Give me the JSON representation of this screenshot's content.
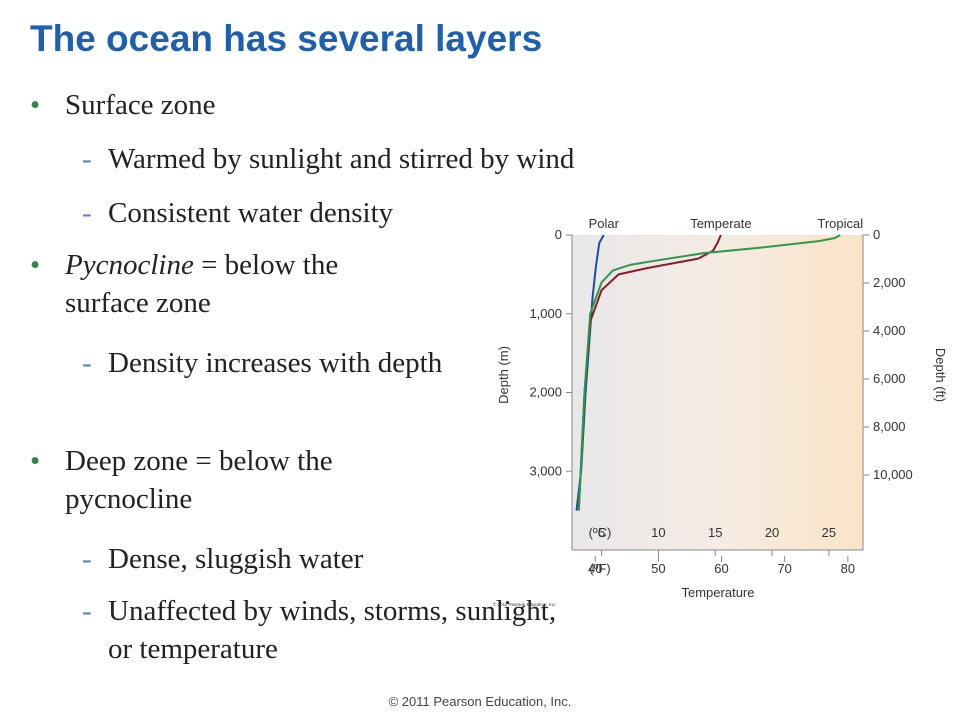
{
  "title": "The ocean has several layers",
  "bullets": [
    {
      "text": "Surface zone"
    },
    {
      "text": "Warmed by sunlight and stirred by wind"
    },
    {
      "text": "Consistent water density"
    },
    {
      "emph": "Pycnocline",
      "text": " = below the surface zone"
    },
    {
      "text": "Density increases with depth"
    },
    {
      "text": "Deep zone = below the pycnocline"
    },
    {
      "text": "Dense, sluggish water"
    },
    {
      "text": "Unaffected by winds, storms, sunlight, or temperature"
    }
  ],
  "chart_data": {
    "type": "line",
    "xlabel": "Temperature",
    "ylabel": "Depth (m)",
    "ylabel_right": "Depth (ft)",
    "x_unit_c": "(ºC)",
    "x_unit_f": "(ºF)",
    "x_ticks_c": [
      "5",
      "10",
      "15",
      "20",
      "25"
    ],
    "x_ticks_f": [
      "40",
      "50",
      "60",
      "70",
      "80"
    ],
    "y_ticks_m": [
      "0",
      "1,000",
      "2,000",
      "3,000"
    ],
    "y_ticks_ft": [
      "0",
      "2,000",
      "4,000",
      "6,000",
      "8,000",
      "10,000"
    ],
    "xlim_c": [
      2.4,
      28.0
    ],
    "ylim_m": [
      0,
      4000
    ],
    "grid": false,
    "series": [
      {
        "name": "Polar",
        "color": "#1b4f9c",
        "x": [
          2.8,
          3.2,
          3.6,
          4.0,
          4.2,
          4.5,
          4.8,
          5.2
        ],
        "y": [
          3500,
          3000,
          2000,
          1200,
          800,
          400,
          100,
          0
        ]
      },
      {
        "name": "Temperate",
        "color": "#8b1a2b",
        "x": [
          3.0,
          3.5,
          4.0,
          4.5,
          5.0,
          6.5,
          9.0,
          13.5,
          14.8,
          15.2,
          15.5
        ],
        "y": [
          3500,
          2000,
          1100,
          900,
          700,
          500,
          420,
          300,
          200,
          100,
          0
        ]
      },
      {
        "name": "Tropical",
        "color": "#2a9a4a",
        "x": [
          3.0,
          3.5,
          4.0,
          4.5,
          5.0,
          6.0,
          7.5,
          10.0,
          14.0,
          19.0,
          24.0,
          25.5,
          26.0
        ],
        "y": [
          3500,
          2000,
          1000,
          800,
          600,
          450,
          380,
          320,
          230,
          160,
          80,
          40,
          0
        ]
      }
    ],
    "credit": "© 2011 Pearson Education, Inc."
  },
  "footer": "© 2011 Pearson Education, Inc."
}
